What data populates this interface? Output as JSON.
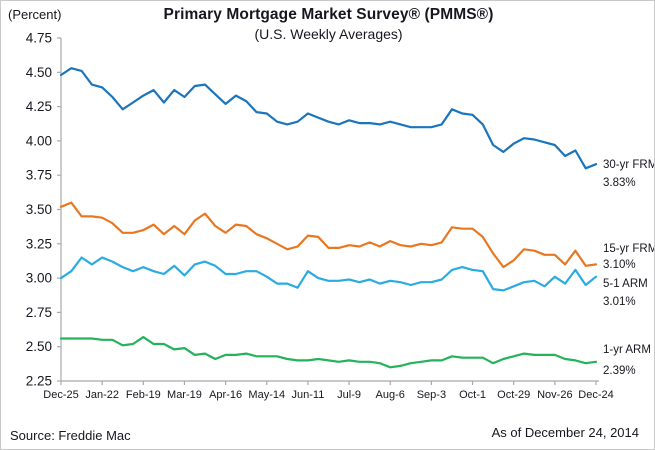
{
  "header": {
    "percent_label": "(Percent)",
    "title": "Primary Mortgage Market Survey® (PMMS®)",
    "subtitle": "(U.S. Weekly Averages)"
  },
  "footer": {
    "source": "Source: Freddie Mac",
    "as_of": "As of December 24, 2014"
  },
  "colors": {
    "axis": "#a9a9a9",
    "text": "#17181f",
    "blue_30yr": "#1b75bc",
    "orange_15yr": "#e87722",
    "cyan_51arm": "#2aabe2",
    "green_1yr": "#24b25a"
  },
  "chart_data": {
    "type": "line",
    "title": "Primary Mortgage Market Survey® (PMMS®)",
    "subtitle": "(U.S. Weekly Averages)",
    "ylabel": "(Percent)",
    "ylim": [
      2.25,
      4.75
    ],
    "y_ticks": [
      "4.75",
      "4.50",
      "4.25",
      "4.00",
      "3.75",
      "3.50",
      "3.25",
      "3.00",
      "2.75",
      "2.50",
      "2.25"
    ],
    "x_tick_labels": [
      "Dec-25",
      "Jan-22",
      "Feb-19",
      "Mar-19",
      "Apr-16",
      "May-14",
      "Jun-11",
      "Jul-9",
      "Aug-6",
      "Sep-3",
      "Oct-1",
      "Oct-29",
      "Nov-26",
      "Dec-24"
    ],
    "x_tick_week_index": [
      0,
      4,
      8,
      12,
      16,
      20,
      24,
      28,
      32,
      36,
      40,
      44,
      48,
      52
    ],
    "grid": false,
    "legend_position": "right-end-labels",
    "series": [
      {
        "name": "30-yr FRM",
        "end_label": {
          "line1": "30-yr FRM",
          "line2": "3.83%"
        },
        "color_key": "blue_30yr",
        "values": [
          4.48,
          4.53,
          4.51,
          4.41,
          4.39,
          4.32,
          4.23,
          4.28,
          4.33,
          4.37,
          4.28,
          4.37,
          4.32,
          4.4,
          4.41,
          4.34,
          4.27,
          4.33,
          4.29,
          4.21,
          4.2,
          4.14,
          4.12,
          4.14,
          4.2,
          4.17,
          4.14,
          4.12,
          4.15,
          4.13,
          4.13,
          4.12,
          4.14,
          4.12,
          4.1,
          4.1,
          4.1,
          4.12,
          4.23,
          4.2,
          4.19,
          4.12,
          3.97,
          3.92,
          3.98,
          4.02,
          4.01,
          3.99,
          3.97,
          3.89,
          3.93,
          3.8,
          3.83
        ]
      },
      {
        "name": "15-yr FRM",
        "end_label": {
          "line1": "15-yr FRM",
          "line2": "3.10%"
        },
        "color_key": "orange_15yr",
        "values": [
          3.52,
          3.55,
          3.45,
          3.45,
          3.44,
          3.4,
          3.33,
          3.33,
          3.35,
          3.39,
          3.32,
          3.38,
          3.32,
          3.42,
          3.47,
          3.38,
          3.33,
          3.39,
          3.38,
          3.32,
          3.29,
          3.25,
          3.21,
          3.23,
          3.31,
          3.3,
          3.22,
          3.22,
          3.24,
          3.23,
          3.26,
          3.23,
          3.27,
          3.24,
          3.23,
          3.25,
          3.24,
          3.26,
          3.37,
          3.36,
          3.36,
          3.3,
          3.18,
          3.08,
          3.13,
          3.21,
          3.2,
          3.17,
          3.17,
          3.1,
          3.2,
          3.09,
          3.1
        ]
      },
      {
        "name": "5-1 ARM",
        "end_label": {
          "line1": "5-1 ARM",
          "line2": "3.01%"
        },
        "color_key": "cyan_51arm",
        "values": [
          3.0,
          3.05,
          3.15,
          3.1,
          3.15,
          3.12,
          3.08,
          3.05,
          3.08,
          3.05,
          3.03,
          3.09,
          3.02,
          3.1,
          3.12,
          3.09,
          3.03,
          3.03,
          3.05,
          3.05,
          3.01,
          2.96,
          2.96,
          2.93,
          3.05,
          3.0,
          2.98,
          2.98,
          2.99,
          2.97,
          2.99,
          2.96,
          2.98,
          2.97,
          2.95,
          2.97,
          2.97,
          2.99,
          3.06,
          3.08,
          3.06,
          3.05,
          2.92,
          2.91,
          2.94,
          2.97,
          2.98,
          2.94,
          3.01,
          2.96,
          3.06,
          2.95,
          3.01
        ]
      },
      {
        "name": "1-yr ARM",
        "end_label": {
          "line1": "1-yr ARM",
          "line2": "2.39%"
        },
        "color_key": "green_1yr",
        "values": [
          2.56,
          2.56,
          2.56,
          2.56,
          2.55,
          2.55,
          2.51,
          2.52,
          2.57,
          2.52,
          2.52,
          2.48,
          2.49,
          2.44,
          2.45,
          2.41,
          2.44,
          2.44,
          2.45,
          2.43,
          2.43,
          2.43,
          2.41,
          2.4,
          2.4,
          2.41,
          2.4,
          2.39,
          2.4,
          2.39,
          2.39,
          2.38,
          2.35,
          2.36,
          2.38,
          2.39,
          2.4,
          2.4,
          2.43,
          2.42,
          2.42,
          2.42,
          2.38,
          2.41,
          2.43,
          2.45,
          2.44,
          2.44,
          2.44,
          2.41,
          2.4,
          2.38,
          2.39
        ]
      }
    ]
  }
}
